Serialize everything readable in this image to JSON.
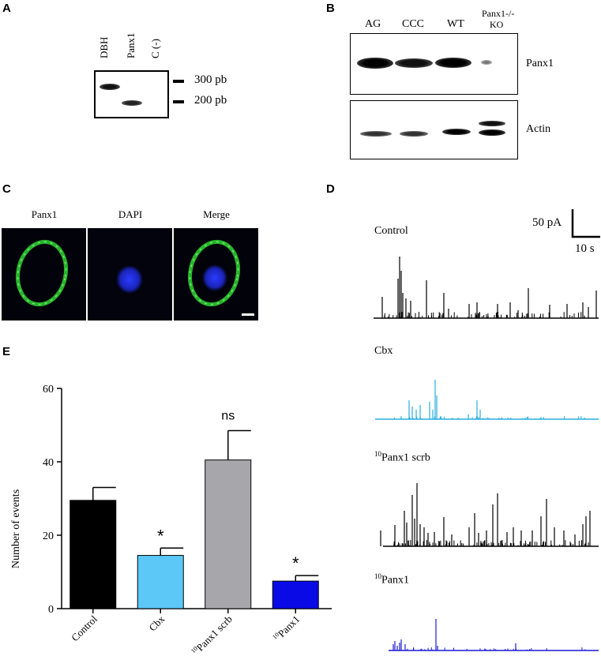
{
  "panel_letters": {
    "a": "A",
    "b": "B",
    "c": "C",
    "d": "D",
    "e": "E"
  },
  "panel_a": {
    "lanes": [
      "DBH",
      "Panx1",
      "C (-)"
    ],
    "markers": [
      "300 pb",
      "200 pb"
    ]
  },
  "panel_b": {
    "lanes": [
      "AG",
      "CCC",
      "WT"
    ],
    "ko_line1": "Panx1-/-",
    "ko_line2": "KO",
    "blots": [
      "Panx1",
      "Actin"
    ]
  },
  "panel_c": {
    "channels": [
      "Panx1",
      "DAPI",
      "Merge"
    ]
  },
  "panel_d": {
    "scale_current": "50 pA",
    "scale_time": "10 s",
    "traces": [
      {
        "label": "Control",
        "color": "#000000"
      },
      {
        "label": "Cbx",
        "color": "#29aee0"
      },
      {
        "label_sup": "10",
        "label": "Panx1 scrb",
        "color": "#000000"
      },
      {
        "label_sup": "10",
        "label": "Panx1",
        "color": "#1a1ad6"
      }
    ]
  },
  "chart_data": {
    "type": "bar",
    "categories": [
      "Control",
      "Cbx",
      "10Panx1 scrb",
      "10Panx1"
    ],
    "category_labels": [
      {
        "sup": "",
        "text": "Control"
      },
      {
        "sup": "",
        "text": "Cbx"
      },
      {
        "sup": "10",
        "text": "Panx1 scrb"
      },
      {
        "sup": "10",
        "text": "Panx1"
      }
    ],
    "values": [
      29.5,
      14.5,
      40.5,
      7.5
    ],
    "errors": [
      3.5,
      2.0,
      8.0,
      1.5
    ],
    "significance": [
      "",
      "*",
      "ns",
      "*"
    ],
    "colors": [
      "#000000",
      "#5bc8f7",
      "#a7a7ab",
      "#0a0ae6"
    ],
    "ylabel": "Number of events",
    "ylim": [
      0,
      60
    ],
    "yticks": [
      0,
      20,
      40,
      60
    ]
  }
}
